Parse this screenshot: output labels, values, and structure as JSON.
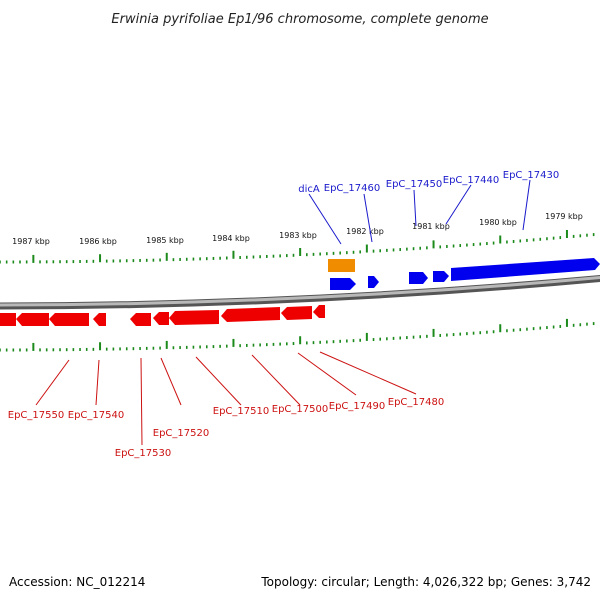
{
  "title": "Erwinia pyrifoliae Ep1/96 chromosome, complete genome",
  "footer": {
    "accession": "Accession: NC_012214",
    "topology": "Topology: circular; Length: 4,026,322 bp; Genes: 3,742"
  },
  "colors": {
    "forward": "#0000ee",
    "reverse": "#ee0000",
    "highlight": "#f08c00",
    "tick": "#1b8a1b",
    "backbone": "#808080"
  },
  "scale_labels": [
    "1987 kbp",
    "1986 kbp",
    "1985 kbp",
    "1984 kbp",
    "1983 kbp",
    "1982 kbp",
    "1981 kbp",
    "1980 kbp",
    "1979 kbp"
  ],
  "forward_genes": [
    "dicA",
    "EpC_17460",
    "EpC_17450",
    "EpC_17440",
    "EpC_17430"
  ],
  "reverse_genes": [
    "EpC_17550",
    "EpC_17540",
    "EpC_17530",
    "EpC_17520",
    "EpC_17510",
    "EpC_17500",
    "EpC_17490",
    "EpC_17480"
  ]
}
